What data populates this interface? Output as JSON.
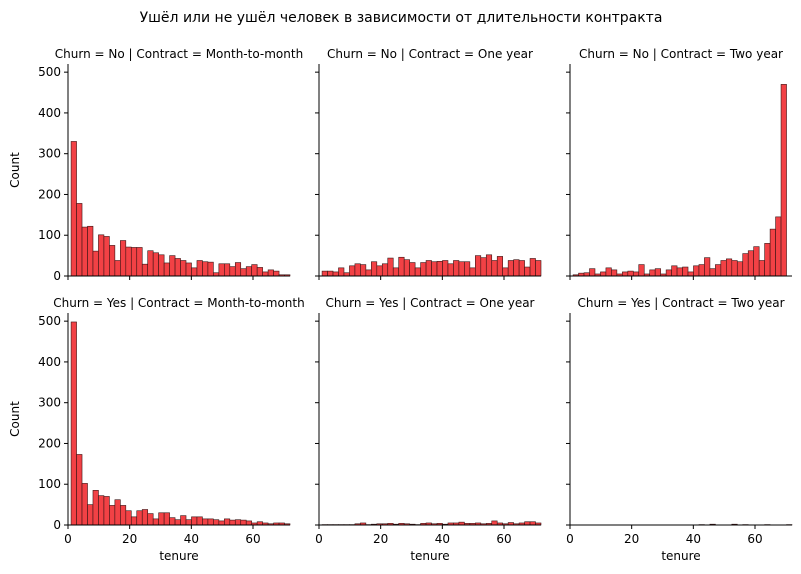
{
  "figure_title": "Ушёл или не ушёл человек в зависимости от длительности контракта",
  "colors": {
    "bar_fill": "#f24145",
    "bar_edge": "#3a1414",
    "axis": "#000000"
  },
  "chart_data": [
    {
      "type": "bar",
      "title": "Churn = No | Contract = Month-to-month",
      "xlabel": "",
      "ylabel": "Count",
      "xlim": [
        0,
        72
      ],
      "ylim": [
        0,
        520
      ],
      "xticks": [
        0,
        20,
        40,
        60
      ],
      "yticks": [
        0,
        100,
        200,
        300,
        400,
        500
      ],
      "bin_start": 1,
      "bin_width": 1.775,
      "values": [
        330,
        178,
        120,
        122,
        61,
        101,
        97,
        75,
        38,
        87,
        71,
        70,
        70,
        29,
        62,
        57,
        52,
        32,
        50,
        43,
        38,
        32,
        20,
        38,
        35,
        34,
        8,
        30,
        30,
        23,
        33,
        18,
        23,
        28,
        21,
        10,
        15,
        12,
        3,
        3
      ]
    },
    {
      "type": "bar",
      "title": "Churn = No | Contract = One year",
      "xlabel": "",
      "ylabel": "",
      "xlim": [
        0,
        72
      ],
      "ylim": [
        0,
        520
      ],
      "xticks": [
        0,
        20,
        40,
        60
      ],
      "yticks": [
        0,
        100,
        200,
        300,
        400,
        500
      ],
      "bin_start": 1,
      "bin_width": 1.775,
      "values": [
        12,
        12,
        10,
        20,
        8,
        25,
        30,
        28,
        15,
        35,
        25,
        30,
        44,
        20,
        46,
        40,
        33,
        20,
        33,
        38,
        35,
        36,
        38,
        30,
        38,
        35,
        35,
        20,
        50,
        45,
        52,
        38,
        48,
        20,
        38,
        40,
        38,
        22,
        43,
        38
      ]
    },
    {
      "type": "bar",
      "title": "Churn = No | Contract = Two year",
      "xlabel": "",
      "ylabel": "",
      "xlim": [
        0,
        72
      ],
      "ylim": [
        0,
        520
      ],
      "xticks": [
        0,
        20,
        40,
        60
      ],
      "yticks": [
        0,
        100,
        200,
        300,
        400,
        500
      ],
      "bin_start": 1,
      "bin_width": 1.775,
      "values": [
        3,
        7,
        8,
        18,
        5,
        10,
        20,
        15,
        5,
        10,
        12,
        10,
        28,
        5,
        15,
        18,
        5,
        15,
        25,
        20,
        22,
        10,
        25,
        28,
        45,
        18,
        28,
        38,
        42,
        38,
        35,
        55,
        62,
        72,
        38,
        80,
        115,
        145,
        470,
        0
      ]
    },
    {
      "type": "bar",
      "title": "Churn = Yes | Contract = Month-to-month",
      "xlabel": "tenure",
      "ylabel": "Count",
      "xlim": [
        0,
        72
      ],
      "ylim": [
        0,
        520
      ],
      "xticks": [
        0,
        20,
        40,
        60
      ],
      "yticks": [
        0,
        100,
        200,
        300,
        400,
        500
      ],
      "bin_start": 1,
      "bin_width": 1.775,
      "values": [
        498,
        173,
        102,
        50,
        85,
        72,
        70,
        48,
        62,
        48,
        35,
        20,
        35,
        38,
        28,
        15,
        30,
        30,
        18,
        13,
        23,
        13,
        20,
        20,
        15,
        15,
        13,
        10,
        15,
        12,
        13,
        12,
        10,
        5,
        8,
        5,
        3,
        5,
        5,
        3
      ]
    },
    {
      "type": "bar",
      "title": "Churn = Yes | Contract = One year",
      "xlabel": "tenure",
      "ylabel": "",
      "xlim": [
        0,
        72
      ],
      "ylim": [
        0,
        520
      ],
      "xticks": [
        0,
        20,
        40,
        60
      ],
      "yticks": [
        0,
        100,
        200,
        300,
        400,
        500
      ],
      "bin_start": 1,
      "bin_width": 1.775,
      "values": [
        1,
        1,
        1,
        1,
        1,
        1,
        3,
        5,
        1,
        2,
        3,
        3,
        4,
        2,
        4,
        3,
        2,
        1,
        4,
        5,
        3,
        4,
        2,
        5,
        5,
        7,
        4,
        4,
        5,
        3,
        4,
        10,
        5,
        3,
        6,
        3,
        5,
        8,
        8,
        5
      ]
    },
    {
      "type": "bar",
      "title": "Churn = Yes | Contract = Two year",
      "xlabel": "tenure",
      "ylabel": "",
      "xlim": [
        0,
        72
      ],
      "ylim": [
        0,
        520
      ],
      "xticks": [
        0,
        20,
        40,
        60
      ],
      "yticks": [
        0,
        100,
        200,
        300,
        400,
        500
      ],
      "bin_start": 1,
      "bin_width": 1.775,
      "values": [
        0,
        0,
        0,
        0,
        0,
        0,
        0,
        0,
        0,
        0,
        0,
        0,
        0,
        0,
        0,
        0,
        0,
        0,
        0,
        0,
        0,
        0,
        0,
        1,
        0,
        2,
        0,
        0,
        0,
        2,
        0,
        1,
        0,
        0,
        0,
        1,
        0,
        0,
        0,
        1
      ]
    }
  ]
}
